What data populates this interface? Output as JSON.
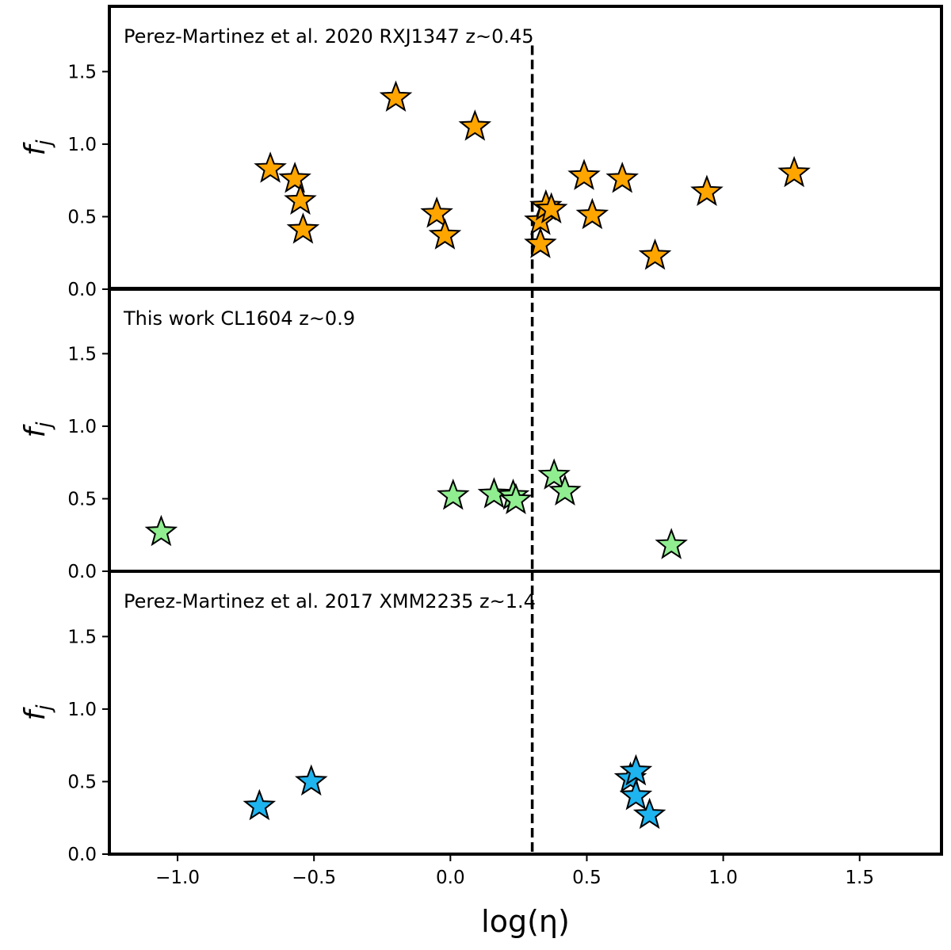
{
  "chart_data": [
    {
      "type": "scatter",
      "panel_label": "Perez-Martinez et al. 2020 RXJ1347 z~0.45",
      "ylabel": "f_j",
      "xlim": [
        -1.25,
        1.8
      ],
      "ylim": [
        0.0,
        1.95
      ],
      "yticks": [
        "0.0",
        "0.5",
        "1.0",
        "1.5"
      ],
      "marker": "star",
      "color": "#ffa500",
      "threshold_x": 0.3,
      "points": [
        {
          "x": -0.66,
          "y": 0.83
        },
        {
          "x": -0.57,
          "y": 0.76
        },
        {
          "x": -0.55,
          "y": 0.61
        },
        {
          "x": -0.54,
          "y": 0.41
        },
        {
          "x": -0.2,
          "y": 1.32
        },
        {
          "x": 0.09,
          "y": 1.12
        },
        {
          "x": -0.05,
          "y": 0.52
        },
        {
          "x": -0.02,
          "y": 0.37
        },
        {
          "x": 0.33,
          "y": 0.47
        },
        {
          "x": 0.33,
          "y": 0.31
        },
        {
          "x": 0.35,
          "y": 0.57
        },
        {
          "x": 0.37,
          "y": 0.55
        },
        {
          "x": 0.49,
          "y": 0.78
        },
        {
          "x": 0.52,
          "y": 0.51
        },
        {
          "x": 0.63,
          "y": 0.76
        },
        {
          "x": 0.75,
          "y": 0.23
        },
        {
          "x": 0.94,
          "y": 0.67
        },
        {
          "x": 1.26,
          "y": 0.8
        }
      ]
    },
    {
      "type": "scatter",
      "panel_label": "This work CL1604 z~0.9",
      "ylabel": "f_j",
      "xlim": [
        -1.25,
        1.8
      ],
      "ylim": [
        0.0,
        1.95
      ],
      "yticks": [
        "0.0",
        "0.5",
        "1.0",
        "1.5"
      ],
      "marker": "star",
      "color": "#90ee90",
      "threshold_x": 0.3,
      "points": [
        {
          "x": -1.06,
          "y": 0.27
        },
        {
          "x": 0.01,
          "y": 0.52
        },
        {
          "x": 0.16,
          "y": 0.53
        },
        {
          "x": 0.23,
          "y": 0.52
        },
        {
          "x": 0.24,
          "y": 0.49
        },
        {
          "x": 0.38,
          "y": 0.66
        },
        {
          "x": 0.42,
          "y": 0.55
        },
        {
          "x": 0.81,
          "y": 0.18
        }
      ]
    },
    {
      "type": "scatter",
      "panel_label": "Perez-Martinez et al. 2017 XMM2235 z~1.4",
      "ylabel": "f_j",
      "xlabel": "log(η)",
      "xlim": [
        -1.25,
        1.8
      ],
      "ylim": [
        0.0,
        1.95
      ],
      "xticks": [
        "−1.0",
        "−0.5",
        "0.0",
        "0.5",
        "1.0",
        "1.5"
      ],
      "yticks": [
        "0.0",
        "0.5",
        "1.0",
        "1.5"
      ],
      "marker": "star",
      "color": "#1eb4f0",
      "threshold_x": 0.3,
      "points": [
        {
          "x": -0.7,
          "y": 0.33
        },
        {
          "x": -0.51,
          "y": 0.5
        },
        {
          "x": 0.66,
          "y": 0.52
        },
        {
          "x": 0.68,
          "y": 0.57
        },
        {
          "x": 0.68,
          "y": 0.4
        },
        {
          "x": 0.73,
          "y": 0.27
        }
      ]
    }
  ]
}
